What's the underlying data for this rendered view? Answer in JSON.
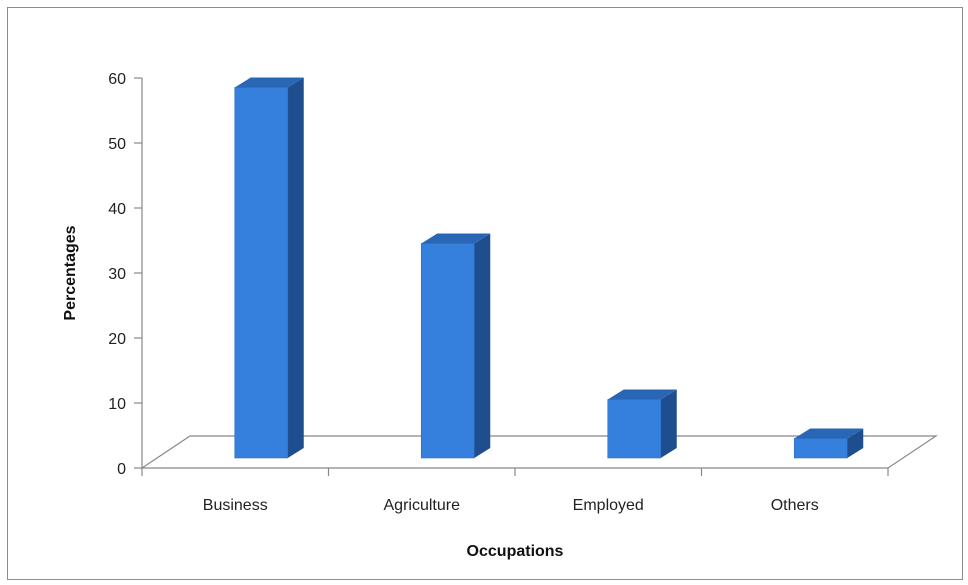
{
  "chart_data": {
    "type": "bar",
    "categories": [
      "Business",
      "Agriculture",
      "Employed",
      "Others"
    ],
    "values": [
      57,
      33,
      9,
      3
    ],
    "xlabel": "Occupations",
    "ylabel": "Percentages",
    "ylim": [
      0,
      60
    ],
    "yticks": [
      "0",
      "10",
      "20",
      "30",
      "40",
      "50",
      "60"
    ],
    "grid": false,
    "legend": "none",
    "three_d": true,
    "colors": {
      "front": "#3580dc",
      "side": "#1f4e8e",
      "top": "#2a66b6",
      "axis": "#888888"
    }
  }
}
